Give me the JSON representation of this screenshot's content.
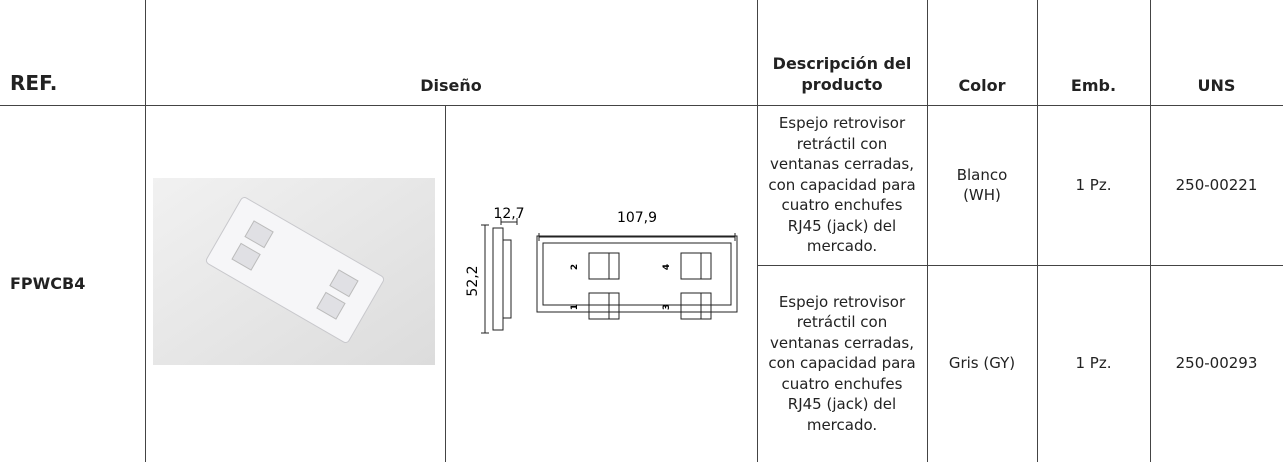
{
  "header": {
    "ref": "REF.",
    "design": "Diseño",
    "description": "Descripción del producto",
    "color": "Color",
    "pack": "Emb.",
    "uns": "UNS"
  },
  "table": {
    "ref": "FPWCB4",
    "drawing": {
      "width_small": "12,7",
      "width_large": "107,9",
      "height": "52,2",
      "ports": [
        "1",
        "2",
        "3",
        "4"
      ]
    },
    "rows": [
      {
        "description": [
          "Espejo retrovisor",
          "retráctil con",
          "ventanas cerradas,",
          "con capacidad para",
          "cuatro enchufes",
          "RJ45 (jack) del",
          "mercado."
        ],
        "color": [
          "Blanco",
          "(WH)"
        ],
        "pack": "1 Pz.",
        "uns": "250-00221"
      },
      {
        "description": [
          "Espejo retrovisor",
          "retráctil con",
          "ventanas cerradas,",
          "con capacidad para",
          "cuatro enchufes",
          "RJ45 (jack) del",
          "mercado."
        ],
        "color": [
          "Gris (GY)"
        ],
        "pack": "1 Pz.",
        "uns": "250-00293"
      }
    ]
  }
}
